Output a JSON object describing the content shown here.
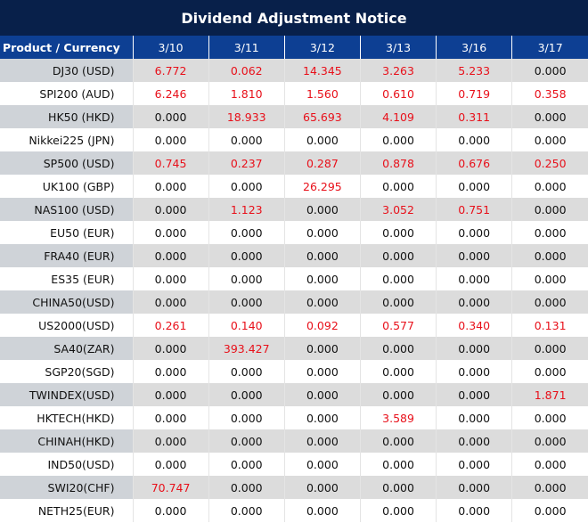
{
  "title": "Dividend Adjustment Notice",
  "header": [
    "Product / Currency",
    "3/10",
    "3/11",
    "3/12",
    "3/13",
    "3/16",
    "3/17"
  ],
  "colors": {
    "title_bg": "#08204a",
    "header_bg": "#0d3f93",
    "positive": "#e8101a"
  },
  "rows": [
    {
      "product": "DJ30 (USD)",
      "values": [
        "6.772",
        "0.062",
        "14.345",
        "3.263",
        "5.233",
        "0.000"
      ]
    },
    {
      "product": "SPI200 (AUD)",
      "values": [
        "6.246",
        "1.810",
        "1.560",
        "0.610",
        "0.719",
        "0.358"
      ]
    },
    {
      "product": "HK50 (HKD)",
      "values": [
        "0.000",
        "18.933",
        "65.693",
        "4.109",
        "0.311",
        "0.000"
      ]
    },
    {
      "product": "Nikkei225 (JPN)",
      "values": [
        "0.000",
        "0.000",
        "0.000",
        "0.000",
        "0.000",
        "0.000"
      ]
    },
    {
      "product": "SP500 (USD)",
      "values": [
        "0.745",
        "0.237",
        "0.287",
        "0.878",
        "0.676",
        "0.250"
      ]
    },
    {
      "product": "UK100 (GBP)",
      "values": [
        "0.000",
        "0.000",
        "26.295",
        "0.000",
        "0.000",
        "0.000"
      ]
    },
    {
      "product": "NAS100 (USD)",
      "values": [
        "0.000",
        "1.123",
        "0.000",
        "3.052",
        "0.751",
        "0.000"
      ]
    },
    {
      "product": "EU50 (EUR)",
      "values": [
        "0.000",
        "0.000",
        "0.000",
        "0.000",
        "0.000",
        "0.000"
      ]
    },
    {
      "product": "FRA40 (EUR)",
      "values": [
        "0.000",
        "0.000",
        "0.000",
        "0.000",
        "0.000",
        "0.000"
      ]
    },
    {
      "product": "ES35 (EUR)",
      "values": [
        "0.000",
        "0.000",
        "0.000",
        "0.000",
        "0.000",
        "0.000"
      ]
    },
    {
      "product": "CHINA50(USD)",
      "values": [
        "0.000",
        "0.000",
        "0.000",
        "0.000",
        "0.000",
        "0.000"
      ]
    },
    {
      "product": "US2000(USD)",
      "values": [
        "0.261",
        "0.140",
        "0.092",
        "0.577",
        "0.340",
        "0.131"
      ]
    },
    {
      "product": "SA40(ZAR)",
      "values": [
        "0.000",
        "393.427",
        "0.000",
        "0.000",
        "0.000",
        "0.000"
      ]
    },
    {
      "product": "SGP20(SGD)",
      "values": [
        "0.000",
        "0.000",
        "0.000",
        "0.000",
        "0.000",
        "0.000"
      ]
    },
    {
      "product": "TWINDEX(USD)",
      "values": [
        "0.000",
        "0.000",
        "0.000",
        "0.000",
        "0.000",
        "1.871"
      ]
    },
    {
      "product": "HKTECH(HKD)",
      "values": [
        "0.000",
        "0.000",
        "0.000",
        "3.589",
        "0.000",
        "0.000"
      ]
    },
    {
      "product": "CHINAH(HKD)",
      "values": [
        "0.000",
        "0.000",
        "0.000",
        "0.000",
        "0.000",
        "0.000"
      ]
    },
    {
      "product": "IND50(USD)",
      "values": [
        "0.000",
        "0.000",
        "0.000",
        "0.000",
        "0.000",
        "0.000"
      ]
    },
    {
      "product": "SWI20(CHF)",
      "values": [
        "70.747",
        "0.000",
        "0.000",
        "0.000",
        "0.000",
        "0.000"
      ]
    },
    {
      "product": "NETH25(EUR)",
      "values": [
        "0.000",
        "0.000",
        "0.000",
        "0.000",
        "0.000",
        "0.000"
      ]
    }
  ]
}
